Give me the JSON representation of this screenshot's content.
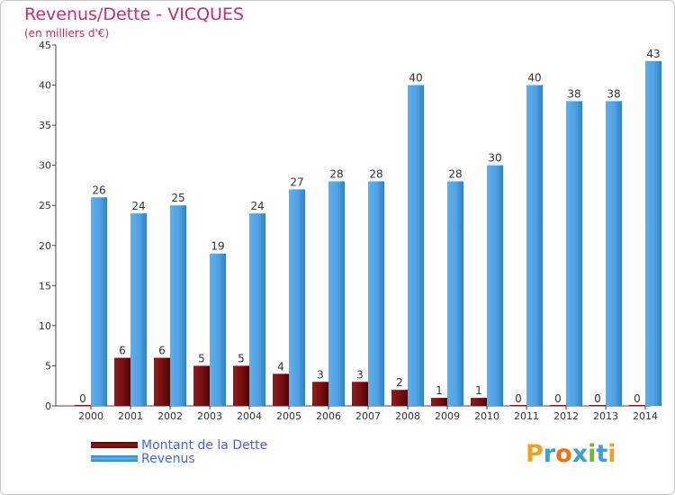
{
  "chart_data": {
    "type": "bar",
    "title": "Revenus/Dette - VICQUES",
    "subtitle": "(en milliers d'€)",
    "categories": [
      "2000",
      "2001",
      "2002",
      "2003",
      "2004",
      "2005",
      "2006",
      "2007",
      "2008",
      "2009",
      "2010",
      "2011",
      "2012",
      "2013",
      "2014"
    ],
    "series": [
      {
        "name": "Montant de la Dette",
        "color": "#7a1010",
        "values": [
          0,
          6,
          6,
          5,
          5,
          4,
          3,
          3,
          2,
          1,
          1,
          0,
          0,
          0,
          0
        ]
      },
      {
        "name": "Revenus",
        "color": "#4da3e3",
        "values": [
          26,
          24,
          25,
          19,
          24,
          27,
          28,
          28,
          40,
          28,
          30,
          40,
          38,
          38,
          43
        ]
      }
    ],
    "ylim": [
      0,
      45
    ],
    "yticks": [
      0,
      5,
      10,
      15,
      20,
      25,
      30,
      35,
      40,
      45
    ],
    "grid": false,
    "legend_position": "bottom-left"
  },
  "logo": {
    "letters": [
      "P",
      "r",
      "o",
      "x",
      "i",
      "t",
      "i"
    ],
    "colors": [
      "#f0a020",
      "#3aa0d8",
      "#f07010",
      "#3aa0d8",
      "#70b830",
      "#3aa0d8",
      "#f0a020"
    ]
  }
}
